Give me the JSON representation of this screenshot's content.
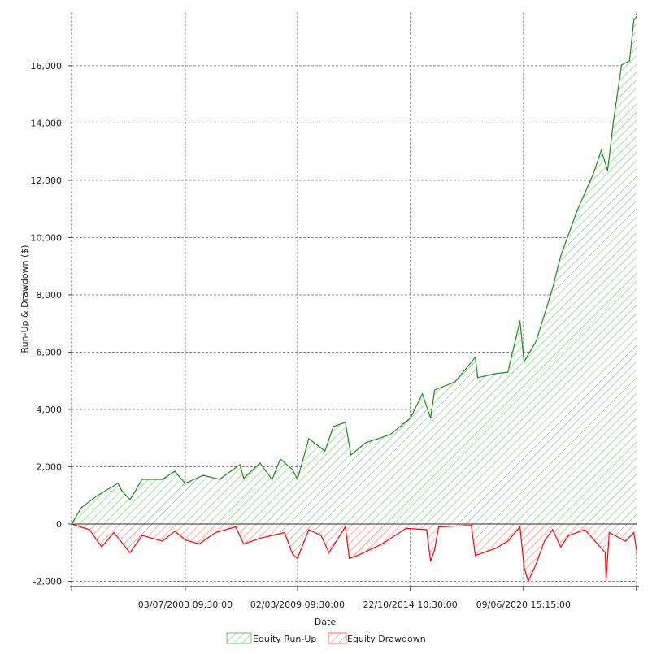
{
  "chart_data": {
    "type": "area",
    "title": "",
    "xlabel": "Date",
    "ylabel": "Run-Up & Drawdown ($)",
    "xlim": [
      1997.8,
      2026.15
    ],
    "ylim": [
      -2185,
      17870
    ],
    "grid": true,
    "legend_placement": "bottom-center",
    "y_ticks": [
      {
        "value": -2000,
        "label": "-2,000"
      },
      {
        "value": 0,
        "label": "0"
      },
      {
        "value": 2000,
        "label": "2,000"
      },
      {
        "value": 4000,
        "label": "4,000"
      },
      {
        "value": 6000,
        "label": "6,000"
      },
      {
        "value": 8000,
        "label": "8,000"
      },
      {
        "value": 10000,
        "label": "10,000"
      },
      {
        "value": 12000,
        "label": "12,000"
      },
      {
        "value": 14000,
        "label": "14,000"
      },
      {
        "value": 16000,
        "label": "16,000"
      }
    ],
    "x_ticks": [
      {
        "value": 1997.8,
        "label": ""
      },
      {
        "value": 2003.5,
        "label": "03/07/2003 09:30:00"
      },
      {
        "value": 2009.12,
        "label": "02/03/2009 09:30:00"
      },
      {
        "value": 2014.77,
        "label": "22/10/2014 10:30:00"
      },
      {
        "value": 2020.44,
        "label": "09/06/2020 15:15:00"
      },
      {
        "value": 2026.1,
        "label": ""
      }
    ],
    "series": [
      {
        "name": "Equity Run-Up",
        "color": "#1a8c1a",
        "fill": "#6dbf6d",
        "x": [
          1997.8,
          1998.29,
          1999.11,
          2000.12,
          2000.33,
          2000.73,
          2001.34,
          2002.36,
          2002.97,
          2003.5,
          2004.4,
          2005.21,
          2006.23,
          2006.43,
          2007.24,
          2007.85,
          2008.26,
          2008.87,
          2009.12,
          2009.69,
          2010.5,
          2010.91,
          2011.52,
          2011.8,
          2012.54,
          2013.76,
          2014.77,
          2015.38,
          2015.79,
          2015.99,
          2017.01,
          2018.03,
          2018.15,
          2019.05,
          2019.66,
          2020.27,
          2020.47,
          2021.08,
          2021.9,
          2022.31,
          2023.12,
          2023.93,
          2024.34,
          2024.66,
          2024.95,
          2025.36,
          2025.76,
          2025.97,
          2026.13
        ],
        "values": [
          0,
          570,
          1000,
          1420,
          1150,
          850,
          1560,
          1560,
          1840,
          1420,
          1700,
          1560,
          2070,
          1600,
          2130,
          1550,
          2270,
          1900,
          1560,
          2980,
          2550,
          3400,
          3550,
          2410,
          2840,
          3120,
          3690,
          4540,
          3700,
          4680,
          4960,
          5820,
          5110,
          5250,
          5300,
          7090,
          5670,
          6380,
          8230,
          9360,
          10920,
          12200,
          13050,
          12340,
          14040,
          16030,
          16170,
          17590,
          17730
        ]
      },
      {
        "name": "Equity Drawdown",
        "color": "#ff0000",
        "fill": "#ff6b6b",
        "x": [
          1997.8,
          1998.7,
          1999.31,
          1999.92,
          2000.73,
          2001.34,
          2002.36,
          2002.97,
          2003.5,
          2004.19,
          2005.01,
          2006.02,
          2006.43,
          2007.24,
          2008.47,
          2008.87,
          2009.12,
          2009.69,
          2010.3,
          2010.7,
          2011.52,
          2011.72,
          2012.13,
          2013.35,
          2014.57,
          2015.59,
          2015.79,
          2015.99,
          2016.2,
          2017.83,
          2018.03,
          2018.44,
          2019.05,
          2019.66,
          2020.27,
          2020.47,
          2020.68,
          2021.08,
          2021.49,
          2021.9,
          2022.31,
          2022.71,
          2023.52,
          2024.54,
          2024.58,
          2024.74,
          2025.56,
          2025.97,
          2026.13
        ],
        "values": [
          0,
          -200,
          -800,
          -300,
          -1000,
          -400,
          -600,
          -250,
          -550,
          -700,
          -300,
          -100,
          -700,
          -500,
          -300,
          -1050,
          -1200,
          -200,
          -400,
          -1000,
          -100,
          -1200,
          -1100,
          -700,
          -150,
          -200,
          -1300,
          -900,
          -100,
          -50,
          -1100,
          -1000,
          -850,
          -600,
          -100,
          -1500,
          -2000,
          -1400,
          -600,
          -200,
          -800,
          -400,
          -200,
          -1000,
          -2000,
          -300,
          -600,
          -300,
          -1000
        ]
      }
    ]
  }
}
